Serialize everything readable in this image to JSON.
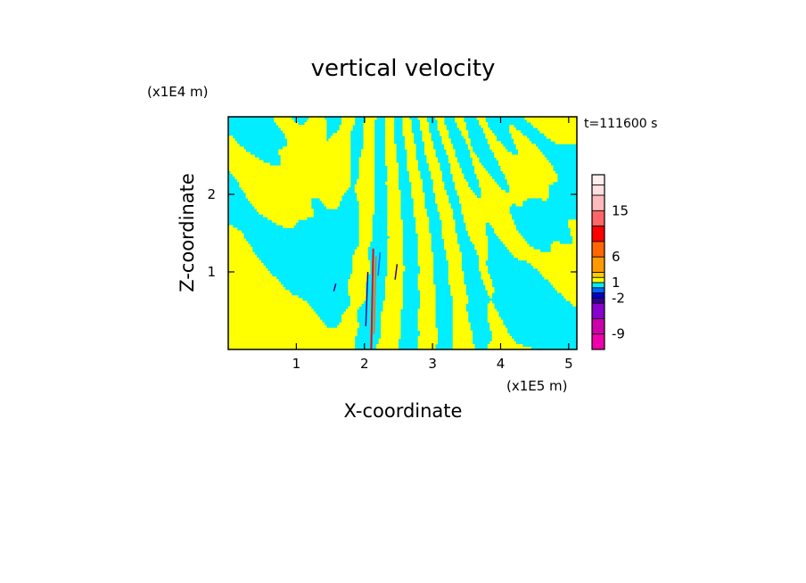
{
  "chart_data": {
    "type": "heatmap",
    "title": "vertical velocity",
    "time_label": "t=111600 s",
    "xlabel": "X-coordinate",
    "ylabel": "Z-coordinate",
    "x_unit": "(x1E5 m)",
    "y_unit": "(x1E4 m)",
    "xlim": [
      0,
      5.12
    ],
    "ylim": [
      0,
      3.0
    ],
    "x_ticks": [
      1,
      2,
      3,
      4,
      5
    ],
    "x_tick_labels": [
      "1",
      "2",
      "3",
      "4",
      "5"
    ],
    "y_ticks": [
      1,
      2
    ],
    "y_tick_labels": [
      "1",
      "2"
    ],
    "colorbar": {
      "levels": [
        {
          "lower": 20,
          "color": "#ffeeee"
        },
        {
          "lower": 18,
          "color": "#ffe0e0"
        },
        {
          "lower": 15,
          "color": "#ffbbbb"
        },
        {
          "lower": 12,
          "color": "#ff6666"
        },
        {
          "lower": 9,
          "color": "#ff0000"
        },
        {
          "lower": 6,
          "color": "#ff6600"
        },
        {
          "lower": 3,
          "color": "#ff9900"
        },
        {
          "lower": 2,
          "color": "#ffcc00"
        },
        {
          "lower": 1,
          "color": "#ffff00"
        },
        {
          "lower": 0,
          "color": "#00eeff"
        },
        {
          "lower": -1,
          "color": "#0066ff"
        },
        {
          "lower": -2,
          "color": "#0000cc"
        },
        {
          "lower": -3,
          "color": "#330099"
        },
        {
          "lower": -6,
          "color": "#8800cc"
        },
        {
          "lower": -9,
          "color": "#cc00aa"
        },
        {
          "lower": -12,
          "color": "#ee00aa"
        }
      ],
      "tick_labels": [
        "15",
        "6",
        "1",
        "-2",
        "-9"
      ],
      "tick_values": [
        15,
        6,
        1,
        -2,
        -9
      ]
    },
    "dominant_colors": {
      "positive": "#ffff00",
      "negative": "#00eeff",
      "strong_positive": "#ff0000",
      "strong_negative": "#330099"
    }
  }
}
